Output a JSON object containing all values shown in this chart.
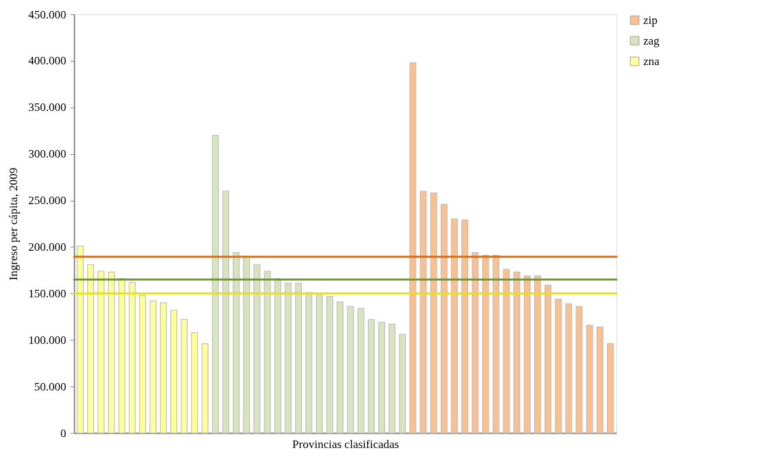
{
  "chart_data": {
    "type": "bar",
    "xlabel": "Provincias clasificadas",
    "ylabel": "Ingreso per cápita, 2009",
    "categories": [
      null,
      null,
      null,
      null,
      null,
      null,
      null,
      null,
      null,
      null,
      null,
      null,
      null,
      null,
      null,
      null,
      null,
      null,
      null,
      null,
      null,
      null,
      null,
      null,
      null,
      null,
      null,
      null,
      null,
      null,
      null,
      null,
      null,
      null,
      null,
      null,
      null,
      null,
      null,
      null,
      null,
      null,
      null,
      null,
      null,
      null,
      null,
      null,
      null,
      null,
      null,
      null
    ],
    "series": [
      {
        "name": "zip",
        "color": "#fac090",
        "values": [
          null,
          null,
          null,
          null,
          null,
          null,
          null,
          null,
          null,
          null,
          null,
          null,
          null,
          null,
          null,
          null,
          null,
          null,
          null,
          null,
          null,
          null,
          null,
          null,
          null,
          null,
          null,
          null,
          null,
          null,
          null,
          null,
          398000,
          260000,
          258000,
          246000,
          230000,
          229000,
          194000,
          191000,
          191000,
          176000,
          173000,
          169000,
          169000,
          159000,
          144000,
          139000,
          136000,
          116000,
          114000,
          96000
        ]
      },
      {
        "name": "zag",
        "color": "#d7e4bd",
        "values": [
          null,
          null,
          null,
          null,
          null,
          null,
          null,
          null,
          null,
          null,
          null,
          null,
          null,
          320000,
          260000,
          194000,
          190000,
          181000,
          174000,
          166000,
          161000,
          161000,
          151000,
          150000,
          147000,
          141000,
          136000,
          134000,
          122000,
          119000,
          117000,
          106000,
          null,
          null,
          null,
          null,
          null,
          null,
          null,
          null,
          null,
          null,
          null,
          null,
          null,
          null,
          null,
          null,
          null,
          null,
          null,
          null
        ]
      },
      {
        "name": "zna",
        "color": "#ffff99",
        "values": [
          201000,
          181000,
          174000,
          173000,
          166000,
          162000,
          148000,
          142000,
          140000,
          132000,
          122000,
          108000,
          96000,
          null,
          null,
          null,
          null,
          null,
          null,
          null,
          null,
          null,
          null,
          null,
          null,
          null,
          null,
          null,
          null,
          null,
          null,
          null,
          null,
          null,
          null,
          null,
          null,
          null,
          null,
          null,
          null,
          null,
          null,
          null,
          null,
          null,
          null,
          null,
          null,
          null,
          null,
          null
        ]
      }
    ],
    "ylim": [
      0,
      450000
    ],
    "yticks": [
      {
        "value": 0,
        "label": "0"
      },
      {
        "value": 50000,
        "label": "50.000"
      },
      {
        "value": 100000,
        "label": "100.000"
      },
      {
        "value": 150000,
        "label": "150.000"
      },
      {
        "value": 200000,
        "label": "200.000"
      },
      {
        "value": 250000,
        "label": "250.000"
      },
      {
        "value": 300000,
        "label": "300.000"
      },
      {
        "value": 350000,
        "label": "350.000"
      },
      {
        "value": 400000,
        "label": "400.000"
      },
      {
        "value": 450000,
        "label": "450.000"
      }
    ],
    "ref_lines": [
      {
        "axis": "y",
        "value": 189500,
        "color": "#e36c0a"
      },
      {
        "axis": "y",
        "value": 165000,
        "color": "#77933c"
      },
      {
        "axis": "y",
        "value": 150000,
        "color": "#e6e600"
      }
    ],
    "grid": false,
    "legend": "right",
    "tick_labels": "y"
  }
}
